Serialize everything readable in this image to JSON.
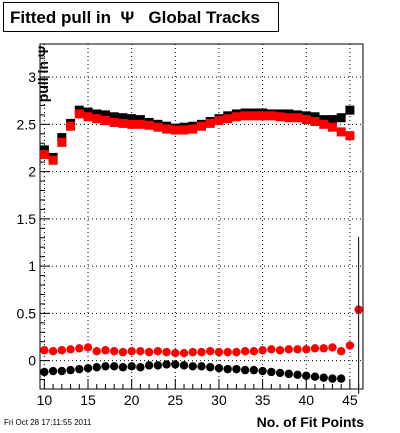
{
  "header": {
    "title": "Fitted pull in  Ψ   Global Tracks",
    "timestamp": "Fri Oct 28 17:11:55 2011"
  },
  "chart_data": {
    "type": "scatter",
    "title": "Fitted pull in  Ψ   Global Tracks",
    "xlabel": "No. of Fit Points",
    "ylabel": "pull in Ψ",
    "xlim": [
      9.5,
      46.5
    ],
    "ylim": [
      -0.3,
      3.35
    ],
    "xticks": [
      10,
      15,
      20,
      25,
      30,
      35,
      40,
      45
    ],
    "yticks": [
      0,
      0.5,
      1,
      1.5,
      2,
      2.5,
      3
    ],
    "ytick_labels": [
      "0",
      "0.5",
      "1",
      "1.5",
      "2",
      "2.5",
      "3"
    ],
    "grid": true,
    "series": [
      {
        "marker": "square",
        "color": "#000000",
        "x": [
          10,
          11,
          12,
          13,
          14,
          15,
          16,
          17,
          18,
          19,
          20,
          21,
          22,
          23,
          24,
          25,
          26,
          27,
          28,
          29,
          30,
          31,
          32,
          33,
          34,
          35,
          36,
          37,
          38,
          39,
          40,
          41,
          42,
          43,
          44,
          45
        ],
        "y": [
          2.23,
          2.15,
          2.36,
          2.51,
          2.65,
          2.63,
          2.61,
          2.6,
          2.58,
          2.57,
          2.56,
          2.55,
          2.52,
          2.5,
          2.48,
          2.46,
          2.47,
          2.48,
          2.5,
          2.53,
          2.56,
          2.59,
          2.61,
          2.62,
          2.62,
          2.62,
          2.61,
          2.61,
          2.61,
          2.6,
          2.59,
          2.58,
          2.55,
          2.55,
          2.57,
          2.65
        ]
      },
      {
        "marker": "square",
        "color": "#ff0000",
        "x": [
          10,
          11,
          12,
          13,
          14,
          15,
          16,
          17,
          18,
          19,
          20,
          21,
          22,
          23,
          24,
          25,
          26,
          27,
          28,
          29,
          30,
          31,
          32,
          33,
          34,
          35,
          36,
          37,
          38,
          39,
          40,
          41,
          42,
          43,
          44,
          45
        ],
        "y": [
          2.18,
          2.12,
          2.31,
          2.48,
          2.61,
          2.58,
          2.56,
          2.54,
          2.52,
          2.51,
          2.5,
          2.5,
          2.49,
          2.47,
          2.45,
          2.44,
          2.44,
          2.45,
          2.48,
          2.51,
          2.54,
          2.56,
          2.58,
          2.59,
          2.59,
          2.59,
          2.59,
          2.58,
          2.57,
          2.57,
          2.55,
          2.53,
          2.5,
          2.47,
          2.42,
          2.38
        ]
      },
      {
        "marker": "circle",
        "color": "#ff0000",
        "x": [
          10,
          11,
          12,
          13,
          14,
          15,
          16,
          17,
          18,
          19,
          20,
          21,
          22,
          23,
          24,
          25,
          26,
          27,
          28,
          29,
          30,
          31,
          32,
          33,
          34,
          35,
          36,
          37,
          38,
          39,
          40,
          41,
          42,
          43,
          44,
          45,
          46
        ],
        "y": [
          0.11,
          0.1,
          0.11,
          0.12,
          0.13,
          0.14,
          0.1,
          0.11,
          0.1,
          0.09,
          0.1,
          0.1,
          0.09,
          0.1,
          0.09,
          0.08,
          0.08,
          0.09,
          0.09,
          0.1,
          0.09,
          0.09,
          0.09,
          0.1,
          0.1,
          0.11,
          0.12,
          0.11,
          0.12,
          0.12,
          0.12,
          0.13,
          0.13,
          0.14,
          0.1,
          0.16,
          0.54
        ],
        "yerr_last": [
          -0.35,
          1.31
        ]
      },
      {
        "marker": "circle",
        "color": "#000000",
        "x": [
          10,
          11,
          12,
          13,
          14,
          15,
          16,
          17,
          18,
          19,
          20,
          21,
          22,
          23,
          24,
          25,
          26,
          27,
          28,
          29,
          30,
          31,
          32,
          33,
          34,
          35,
          36,
          37,
          38,
          39,
          40,
          41,
          42,
          43,
          44
        ],
        "y": [
          -0.12,
          -0.11,
          -0.11,
          -0.1,
          -0.09,
          -0.08,
          -0.07,
          -0.06,
          -0.06,
          -0.07,
          -0.06,
          -0.07,
          -0.05,
          -0.05,
          -0.04,
          -0.04,
          -0.05,
          -0.06,
          -0.06,
          -0.07,
          -0.08,
          -0.09,
          -0.09,
          -0.1,
          -0.1,
          -0.11,
          -0.12,
          -0.13,
          -0.14,
          -0.15,
          -0.16,
          -0.17,
          -0.18,
          -0.19,
          -0.19
        ]
      }
    ]
  }
}
